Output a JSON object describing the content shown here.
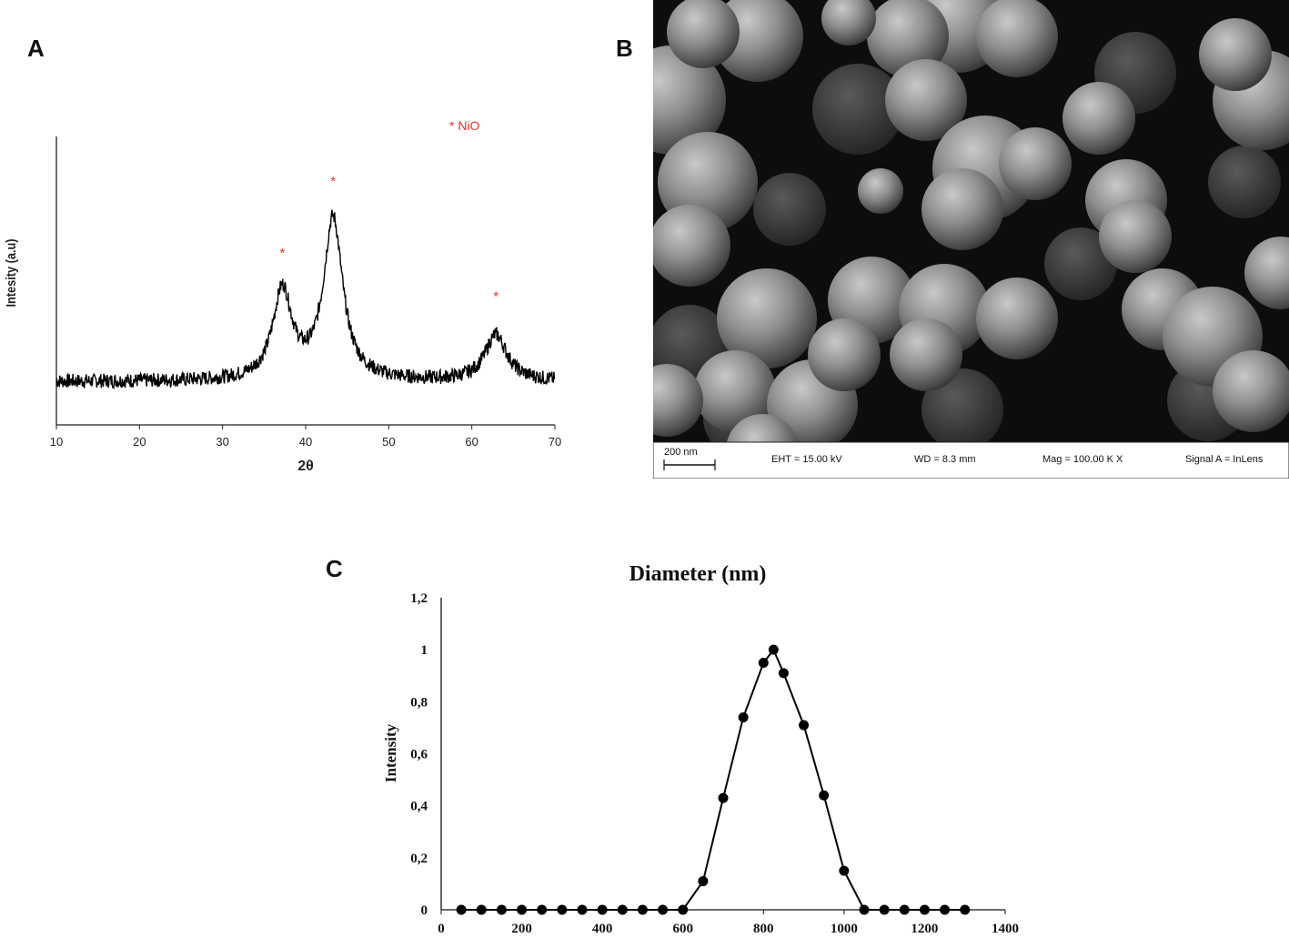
{
  "panels": {
    "a": {
      "letter": "A",
      "chart_data": {
        "type": "line",
        "xlabel": "2θ",
        "ylabel": "Intesity (a.u)",
        "xlim": [
          10,
          70
        ],
        "ylim": [
          0,
          1
        ],
        "x_ticks": [
          "10",
          "20",
          "30",
          "40",
          "50",
          "60",
          "70"
        ],
        "legend": "* NiO",
        "peaks": [
          {
            "x": 37.2,
            "intensity": 0.46,
            "width": 1.4
          },
          {
            "x": 43.3,
            "intensity": 0.71,
            "width": 1.4
          },
          {
            "x": 62.9,
            "intensity": 0.31,
            "width": 1.6
          }
        ],
        "baseline": 0.15,
        "marker_color": "#e8312a"
      }
    },
    "b": {
      "letter": "B",
      "scale_bar": "200 nm",
      "eht": "EHT = 15.00 kV",
      "wd": "WD =  8.3 mm",
      "mag": "Mag = 100.00 K X",
      "signal": "Signal A = InLens"
    },
    "c": {
      "letter": "C",
      "chart_data": {
        "type": "line",
        "title": "Diameter (nm)",
        "ylabel": "Intensity",
        "xlabel": "",
        "xlim": [
          0,
          1400
        ],
        "ylim": [
          0,
          1.2
        ],
        "x_ticks": [
          "0",
          "200",
          "400",
          "600",
          "800",
          "1000",
          "1200",
          "1400"
        ],
        "y_ticks": [
          "0",
          "0,2",
          "0,4",
          "0,6",
          "0,8",
          "1",
          "1,2"
        ],
        "x": [
          50,
          100,
          150,
          200,
          250,
          300,
          350,
          400,
          450,
          500,
          550,
          600,
          650,
          700,
          750,
          800,
          825,
          850,
          900,
          950,
          1000,
          1050,
          1100,
          1150,
          1200,
          1250,
          1300
        ],
        "y": [
          0,
          0,
          0,
          0,
          0,
          0,
          0,
          0,
          0,
          0,
          0,
          0,
          0.11,
          0.43,
          0.74,
          0.95,
          1.0,
          0.91,
          0.71,
          0.44,
          0.15,
          0,
          0,
          0,
          0,
          0,
          0
        ]
      }
    }
  }
}
